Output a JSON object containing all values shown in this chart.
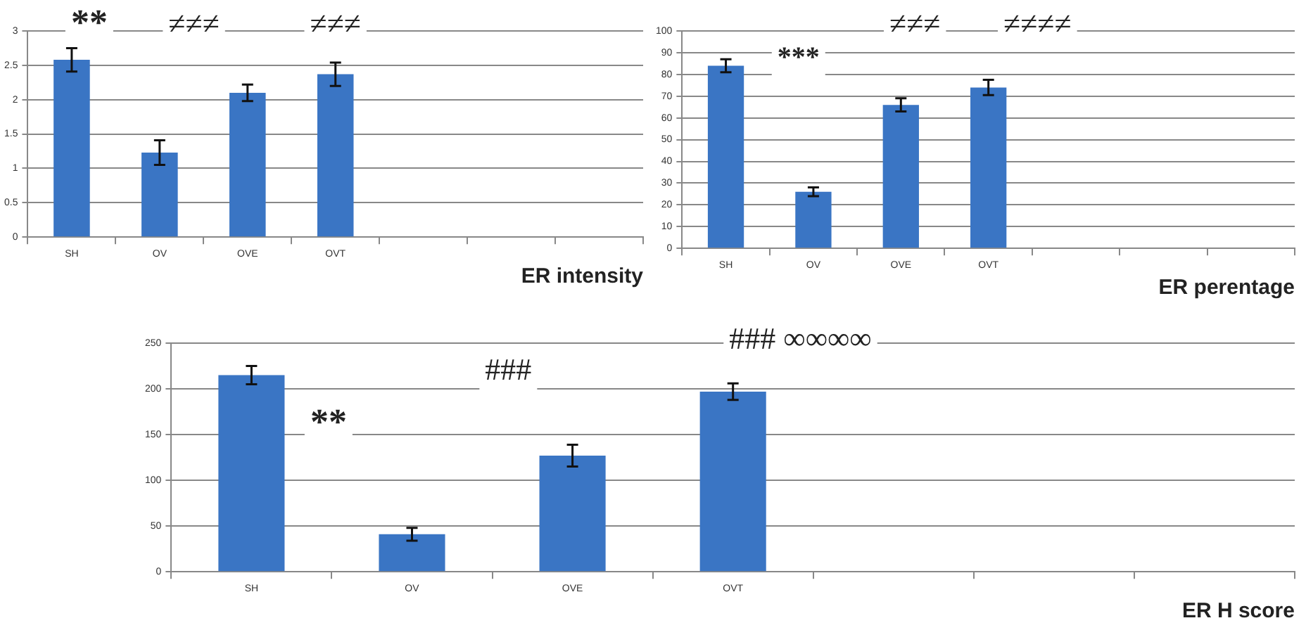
{
  "chart_data": [
    {
      "type": "bar",
      "xlabel": "ER intensity",
      "categories": [
        "SH",
        "OV",
        "OVE",
        "OVT",
        null,
        null,
        null
      ],
      "values": [
        2.58,
        1.23,
        2.1,
        2.37,
        null,
        null,
        null
      ],
      "errors": [
        0.17,
        0.18,
        0.12,
        0.17,
        null,
        null,
        null
      ],
      "color": "#3a75c4",
      "ylim": [
        0,
        3
      ],
      "yticks": [
        0,
        0.5,
        1,
        1.5,
        2,
        2.5,
        3
      ],
      "grid": "y",
      "legend": false,
      "annotations": [
        "**",
        "≠≠≠",
        "≠≠≠"
      ]
    },
    {
      "type": "bar",
      "xlabel": "ER perentage",
      "categories": [
        "SH",
        "OV",
        "OVE",
        "OVT",
        null,
        null,
        null
      ],
      "values": [
        84,
        26,
        66,
        74,
        null,
        null,
        null
      ],
      "errors": [
        3,
        2,
        3,
        3.5,
        null,
        null,
        null
      ],
      "color": "#3a75c4",
      "ylim": [
        0,
        100
      ],
      "yticks": [
        0,
        10,
        20,
        30,
        40,
        50,
        60,
        70,
        80,
        90,
        100
      ],
      "grid": "y",
      "legend": false,
      "annotations": [
        "***",
        "≠≠≠",
        "≠≠≠≠"
      ]
    },
    {
      "type": "bar",
      "xlabel": "ER H score",
      "categories": [
        "SH",
        "OV",
        "OVE",
        "OVT",
        null,
        null,
        null
      ],
      "values": [
        215,
        41,
        127,
        197,
        null,
        null,
        null
      ],
      "errors": [
        10,
        7,
        12,
        9,
        null,
        null,
        null
      ],
      "color": "#3a75c4",
      "ylim": [
        0,
        250
      ],
      "yticks": [
        0,
        50,
        100,
        150,
        200,
        250
      ],
      "grid": "y",
      "legend": false,
      "annotations": [
        "**",
        "###",
        "### ∞∞∞∞"
      ]
    }
  ]
}
